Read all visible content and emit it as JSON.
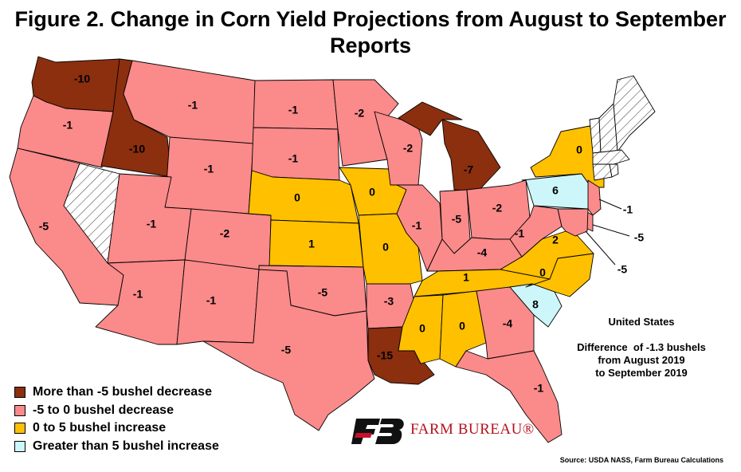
{
  "title": "Figure 2. Change in Corn Yield Projections from August to September Reports",
  "colors": {
    "more_than_5_decrease": "#8b2f0f",
    "decrease_0_to_5": "#fb8a8a",
    "increase_0_to_5": "#ffc000",
    "greater_than_5_increase": "#ccf6fa",
    "no_data_hatch": "#ffffff"
  },
  "legend": {
    "items": [
      {
        "label": "More than -5 bushel decrease",
        "color": "#8b2f0f"
      },
      {
        "label": "-5 to 0 bushel decrease",
        "color": "#fb8a8a"
      },
      {
        "label": "0 to 5 bushel increase",
        "color": "#ffc000"
      },
      {
        "label": "Greater than 5 bushel increase",
        "color": "#ccf6fa"
      }
    ]
  },
  "summary": {
    "title": "United States",
    "line1": "Difference  of -1.3 bushels",
    "line2": "from August 2019",
    "line3": "to September 2019"
  },
  "logo": {
    "text": "FARM BUREAU®",
    "icon": "farm-bureau-fb-icon"
  },
  "source": "Source: USDA NASS, Farm Bureau Calculations",
  "states": [
    {
      "id": "WA",
      "value": "-10",
      "category": "more_than_5_decrease"
    },
    {
      "id": "OR",
      "value": "-1",
      "category": "decrease_0_to_5"
    },
    {
      "id": "CA",
      "value": "-5",
      "category": "decrease_0_to_5"
    },
    {
      "id": "NV",
      "value": "",
      "category": "no_data"
    },
    {
      "id": "ID",
      "value": "-10",
      "category": "more_than_5_decrease"
    },
    {
      "id": "MT",
      "value": "-1",
      "category": "decrease_0_to_5"
    },
    {
      "id": "WY",
      "value": "-1",
      "category": "decrease_0_to_5"
    },
    {
      "id": "UT",
      "value": "-1",
      "category": "decrease_0_to_5"
    },
    {
      "id": "CO",
      "value": "-2",
      "category": "decrease_0_to_5"
    },
    {
      "id": "AZ",
      "value": "-1",
      "category": "decrease_0_to_5"
    },
    {
      "id": "NM",
      "value": "-1",
      "category": "decrease_0_to_5"
    },
    {
      "id": "ND",
      "value": "-1",
      "category": "decrease_0_to_5"
    },
    {
      "id": "SD",
      "value": "-1",
      "category": "decrease_0_to_5"
    },
    {
      "id": "NE",
      "value": "0",
      "category": "increase_0_to_5"
    },
    {
      "id": "KS",
      "value": "1",
      "category": "increase_0_to_5"
    },
    {
      "id": "OK",
      "value": "-5",
      "category": "decrease_0_to_5"
    },
    {
      "id": "TX",
      "value": "-5",
      "category": "decrease_0_to_5"
    },
    {
      "id": "MN",
      "value": "-2",
      "category": "decrease_0_to_5"
    },
    {
      "id": "IA",
      "value": "0",
      "category": "increase_0_to_5"
    },
    {
      "id": "MO",
      "value": "0",
      "category": "increase_0_to_5"
    },
    {
      "id": "AR",
      "value": "-3",
      "category": "decrease_0_to_5"
    },
    {
      "id": "LA",
      "value": "-15",
      "category": "more_than_5_decrease"
    },
    {
      "id": "WI",
      "value": "-2",
      "category": "decrease_0_to_5"
    },
    {
      "id": "IL",
      "value": "-1",
      "category": "decrease_0_to_5"
    },
    {
      "id": "MI",
      "value": "-7",
      "category": "more_than_5_decrease"
    },
    {
      "id": "IN",
      "value": "-5",
      "category": "decrease_0_to_5"
    },
    {
      "id": "OH",
      "value": "-2",
      "category": "decrease_0_to_5"
    },
    {
      "id": "KY",
      "value": "-4",
      "category": "decrease_0_to_5"
    },
    {
      "id": "TN",
      "value": "1",
      "category": "increase_0_to_5"
    },
    {
      "id": "MS",
      "value": "0",
      "category": "increase_0_to_5"
    },
    {
      "id": "AL",
      "value": "0",
      "category": "increase_0_to_5"
    },
    {
      "id": "GA",
      "value": "-4",
      "category": "decrease_0_to_5"
    },
    {
      "id": "FL",
      "value": "-1",
      "category": "decrease_0_to_5"
    },
    {
      "id": "SC",
      "value": "8",
      "category": "greater_than_5_increase"
    },
    {
      "id": "NC",
      "value": "0",
      "category": "increase_0_to_5"
    },
    {
      "id": "VA",
      "value": "2",
      "category": "increase_0_to_5"
    },
    {
      "id": "WV",
      "value": "-1",
      "category": "decrease_0_to_5"
    },
    {
      "id": "PA",
      "value": "6",
      "category": "greater_than_5_increase"
    },
    {
      "id": "NY",
      "value": "0",
      "category": "increase_0_to_5"
    },
    {
      "id": "NJ",
      "value": "-1",
      "category": "decrease_0_to_5"
    },
    {
      "id": "DE",
      "value": "-5",
      "category": "decrease_0_to_5"
    },
    {
      "id": "MD",
      "value": "-5",
      "category": "decrease_0_to_5"
    },
    {
      "id": "VT",
      "value": "",
      "category": "no_data"
    },
    {
      "id": "NH",
      "value": "",
      "category": "no_data"
    },
    {
      "id": "ME",
      "value": "",
      "category": "no_data"
    },
    {
      "id": "MA",
      "value": "",
      "category": "no_data"
    },
    {
      "id": "CT",
      "value": "",
      "category": "no_data"
    },
    {
      "id": "RI",
      "value": "",
      "category": "no_data"
    }
  ]
}
